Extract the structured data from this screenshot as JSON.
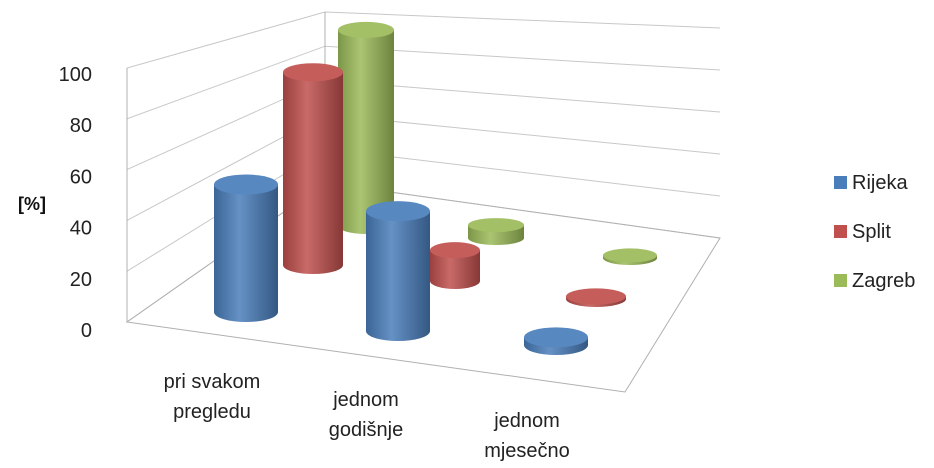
{
  "chart_data": {
    "type": "bar",
    "variant": "3d-cylinder",
    "title": "",
    "xlabel": "",
    "ylabel": "[%]",
    "ylim": [
      0,
      100
    ],
    "yticks": [
      0,
      20,
      40,
      60,
      80,
      100
    ],
    "grid": true,
    "legend_position": "right",
    "categories": [
      [
        "pri svakom",
        "pregledu"
      ],
      [
        "jednom",
        "godišnje"
      ],
      [
        "jednom",
        "mjesečno"
      ]
    ],
    "series": [
      {
        "name": "Rijeka",
        "color": "#4a7ebb",
        "values": [
          50,
          47,
          3
        ]
      },
      {
        "name": "Split",
        "color": "#c0504d",
        "values": [
          75,
          12,
          1
        ]
      },
      {
        "name": "Zagreb",
        "color": "#9bbb59",
        "values": [
          76,
          5,
          1
        ]
      }
    ]
  }
}
